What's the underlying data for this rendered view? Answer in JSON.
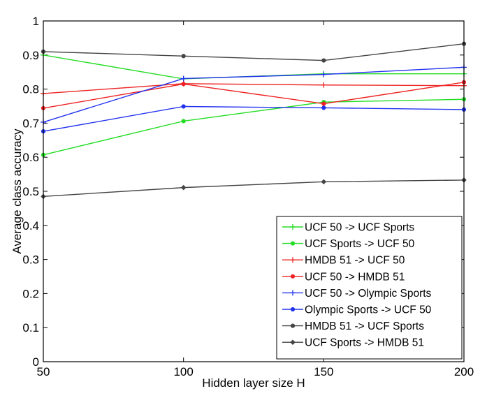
{
  "chart_data": {
    "type": "line",
    "xlabel": "Hidden layer size H",
    "ylabel": "Average class accuracy",
    "xlim": [
      50,
      200
    ],
    "ylim": [
      0,
      1
    ],
    "x": [
      50,
      100,
      150,
      200
    ],
    "xticks": [
      "50",
      "100",
      "150",
      "200"
    ],
    "yticks": [
      "0",
      "0.1",
      "0.2",
      "0.3",
      "0.4",
      "0.5",
      "0.6",
      "0.7",
      "0.8",
      "0.9",
      "1"
    ],
    "grid": false,
    "legend_position": "bottom-right",
    "series": [
      {
        "name": "UCF 50 -> UCF Sports",
        "values": [
          0.9,
          0.83,
          0.845,
          0.845
        ],
        "color": "#22dd22",
        "marker": "plus"
      },
      {
        "name": "UCF Sports -> UCF 50",
        "values": [
          0.607,
          0.706,
          0.762,
          0.77
        ],
        "color": "#22dd22",
        "marker": "dot"
      },
      {
        "name": "HMDB 51 -> UCF 50",
        "values": [
          0.787,
          0.816,
          0.812,
          0.81
        ],
        "color": "#ee2222",
        "marker": "plus"
      },
      {
        "name": "UCF 50 -> HMDB 51",
        "values": [
          0.744,
          0.815,
          0.757,
          0.82
        ],
        "color": "#ee2222",
        "marker": "dot"
      },
      {
        "name": "UCF 50 -> Olympic Sports",
        "values": [
          0.703,
          0.831,
          0.843,
          0.864
        ],
        "color": "#2233ee",
        "marker": "plus"
      },
      {
        "name": "Olympic Sports -> UCF 50",
        "values": [
          0.676,
          0.749,
          0.745,
          0.74
        ],
        "color": "#2233ee",
        "marker": "dot"
      },
      {
        "name": "HMDB 51 -> UCF Sports",
        "values": [
          0.91,
          0.897,
          0.884,
          0.933
        ],
        "color": "#444444",
        "marker": "dot"
      },
      {
        "name": "UCF Sports -> HMDB 51",
        "values": [
          0.485,
          0.511,
          0.528,
          0.533
        ],
        "color": "#444444",
        "marker": "diamond"
      }
    ]
  }
}
